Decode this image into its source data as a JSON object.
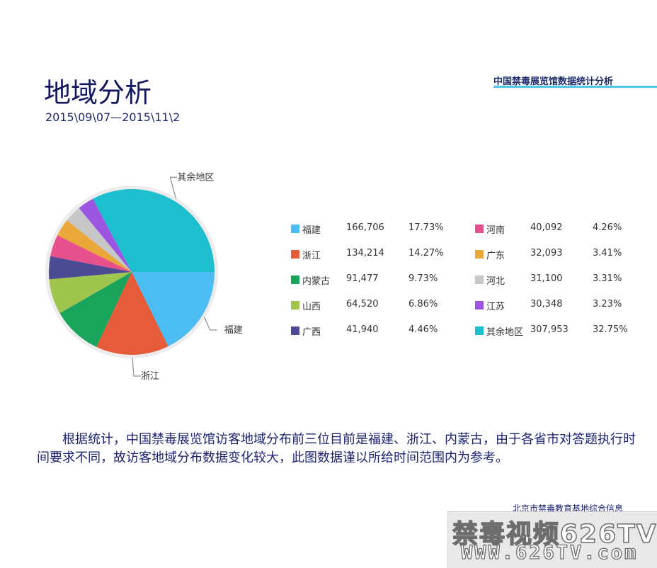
{
  "header": {
    "title": "地域分析",
    "date_range": "2015\\09\\07—2015\\11\\2",
    "top_right": "中国禁毒展览馆数据统计分析"
  },
  "chart_data": {
    "type": "pie",
    "slices": [
      {
        "name": "福建",
        "value": 166706,
        "value_label": "166,706",
        "percent_label": "17.73%",
        "color": "#4bbdf2"
      },
      {
        "name": "浙江",
        "value": 134214,
        "value_label": "134,214",
        "percent_label": "14.27%",
        "color": "#e65b3a"
      },
      {
        "name": "内蒙古",
        "value": 91477,
        "value_label": "91,477",
        "percent_label": "9.73%",
        "color": "#1aa35a"
      },
      {
        "name": "山西",
        "value": 64520,
        "value_label": "64,520",
        "percent_label": "6.86%",
        "color": "#9fc54f"
      },
      {
        "name": "广西",
        "value": 41940,
        "value_label": "41,940",
        "percent_label": "4.46%",
        "color": "#4b4a93"
      },
      {
        "name": "河南",
        "value": 40092,
        "value_label": "40,092",
        "percent_label": "4.26%",
        "color": "#e6508c"
      },
      {
        "name": "广东",
        "value": 32093,
        "value_label": "32,093",
        "percent_label": "3.41%",
        "color": "#eba83a"
      },
      {
        "name": "河北",
        "value": 31100,
        "value_label": "31,100",
        "percent_label": "3.31%",
        "color": "#c7c7c7"
      },
      {
        "name": "江苏",
        "value": 30348,
        "value_label": "30,348",
        "percent_label": "3.23%",
        "color": "#9b55e0"
      },
      {
        "name": "其余地区",
        "value": 307953,
        "value_label": "307,953",
        "percent_label": "32.75%",
        "color": "#1dbfcf"
      }
    ],
    "callouts": [
      "其余地区",
      "福建",
      "浙江"
    ],
    "legend_placement": "right"
  },
  "description": "根据统计，中国禁毒展览馆访客地域分布前三位目前是福建、浙江、内蒙古，由于各省市对答题执行时间要求不同，故访客地域分布数据变化较大，此图数据谨以所给时间范围内为参考。",
  "footer": {
    "source": "北京市禁毒教育基地综合信息",
    "watermark_line1": "禁毒视频626TV",
    "watermark_line2": "WWW.626TV.com"
  }
}
